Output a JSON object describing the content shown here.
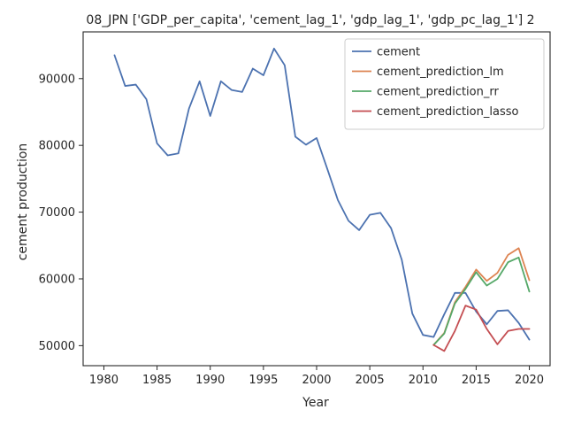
{
  "chart_data": {
    "type": "line",
    "title": "08_JPN ['GDP_per_capita', 'cement_lag_1', 'gdp_lag_1', 'gdp_pc_lag_1'] 2",
    "xlabel": "Year",
    "ylabel": "cement production",
    "xlim": [
      1978.05,
      2021.95
    ],
    "ylim": [
      47000,
      97000
    ],
    "xticks": [
      1980,
      1985,
      1990,
      1995,
      2000,
      2005,
      2010,
      2015,
      2020
    ],
    "yticks": [
      50000,
      60000,
      70000,
      80000,
      90000
    ],
    "grid": false,
    "legend_position": "top-right",
    "series": [
      {
        "name": "cement",
        "color": "#4c72b0",
        "x": [
          1981,
          1982,
          1983,
          1984,
          1985,
          1986,
          1987,
          1988,
          1989,
          1990,
          1991,
          1992,
          1993,
          1994,
          1995,
          1996,
          1997,
          1998,
          1999,
          2000,
          2001,
          2002,
          2003,
          2004,
          2005,
          2006,
          2007,
          2008,
          2009,
          2010,
          2011,
          2012,
          2013,
          2014,
          2015,
          2016,
          2017,
          2018,
          2019,
          2020
        ],
        "y": [
          93500,
          88900,
          89100,
          86900,
          80300,
          78500,
          78800,
          85500,
          89600,
          84400,
          89600,
          88300,
          88000,
          91500,
          90500,
          94500,
          92000,
          81300,
          80100,
          81100,
          76500,
          71800,
          68700,
          67300,
          69600,
          69900,
          67600,
          62900,
          54800,
          51600,
          51300,
          54700,
          57900,
          57900,
          55100,
          53200,
          55200,
          55300,
          53400,
          50900
        ]
      },
      {
        "name": "cement_prediction_lm",
        "color": "#dd8452",
        "x": [
          2011,
          2012,
          2013,
          2014,
          2015,
          2016,
          2017,
          2018,
          2019,
          2020
        ],
        "y": [
          50100,
          51900,
          56500,
          58800,
          61400,
          59700,
          60900,
          63600,
          64600,
          59800
        ]
      },
      {
        "name": "cement_prediction_rr",
        "color": "#55a868",
        "x": [
          2011,
          2012,
          2013,
          2014,
          2015,
          2016,
          2017,
          2018,
          2019,
          2020
        ],
        "y": [
          50100,
          51800,
          56300,
          58500,
          61000,
          59000,
          60000,
          62500,
          63200,
          58100
        ]
      },
      {
        "name": "cement_prediction_lasso",
        "color": "#c44e52",
        "x": [
          2011,
          2012,
          2013,
          2014,
          2015,
          2016,
          2017,
          2018,
          2019,
          2020
        ],
        "y": [
          50100,
          49200,
          52200,
          56000,
          55400,
          52500,
          50200,
          52200,
          52500,
          52500
        ]
      }
    ]
  }
}
